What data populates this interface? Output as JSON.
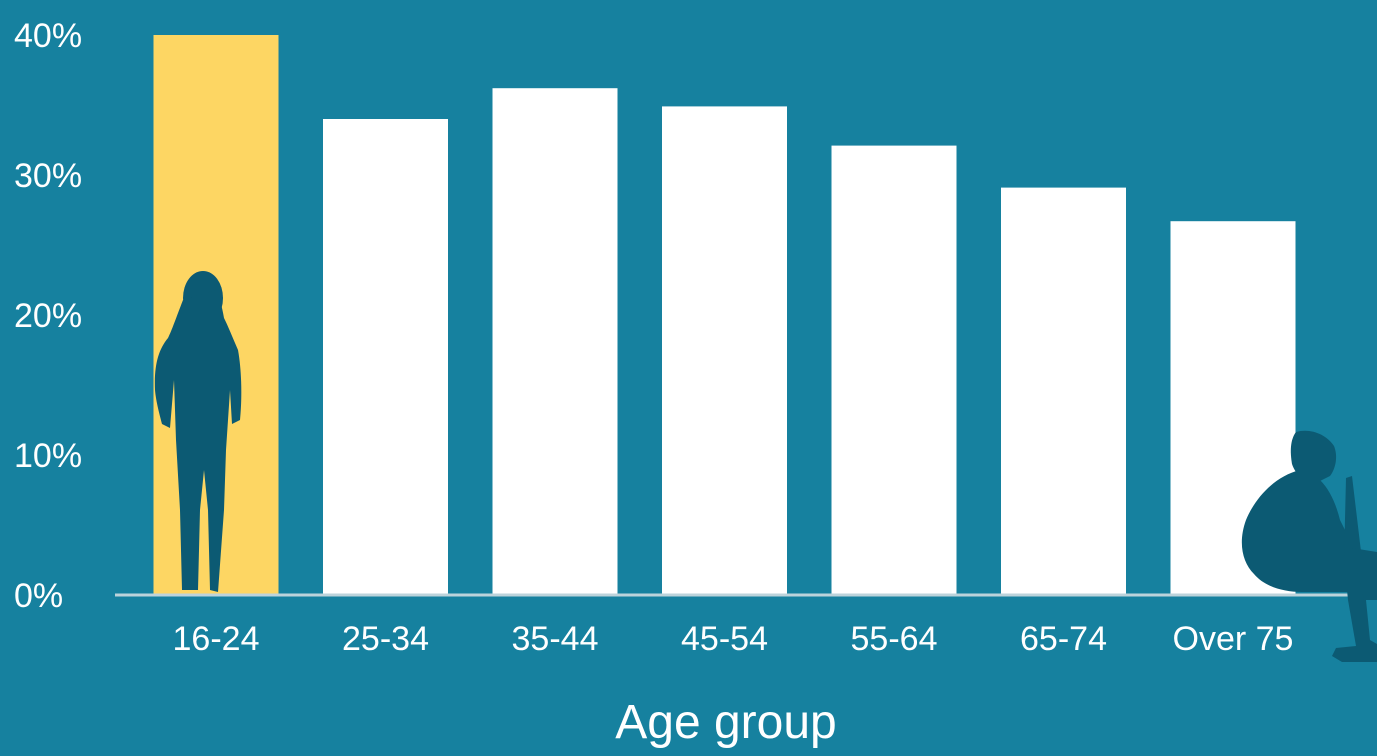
{
  "chart_data": {
    "type": "bar",
    "title": "",
    "xlabel": "Age group",
    "ylabel": "",
    "categories": [
      "16-24",
      "25-34",
      "35-44",
      "45-54",
      "55-64",
      "65-74",
      "Over 75"
    ],
    "values": [
      40,
      34,
      36.2,
      34.9,
      32.1,
      29.1,
      26.7
    ],
    "ylim": [
      0,
      40
    ],
    "yticks": [
      "0%",
      "10%",
      "20%",
      "30%",
      "40%"
    ],
    "grid": false,
    "legend": "none",
    "highlight_category": "16-24"
  },
  "colors": {
    "background": "#16819f",
    "bar": "#ffffff",
    "highlight_bar": "#fdd663",
    "silhouette": "#0c5a73",
    "baseline": "#bcd3db"
  },
  "icons": {
    "young_person": "standing-young-person-icon",
    "elderly_person": "seated-elderly-person-with-cane-icon"
  }
}
